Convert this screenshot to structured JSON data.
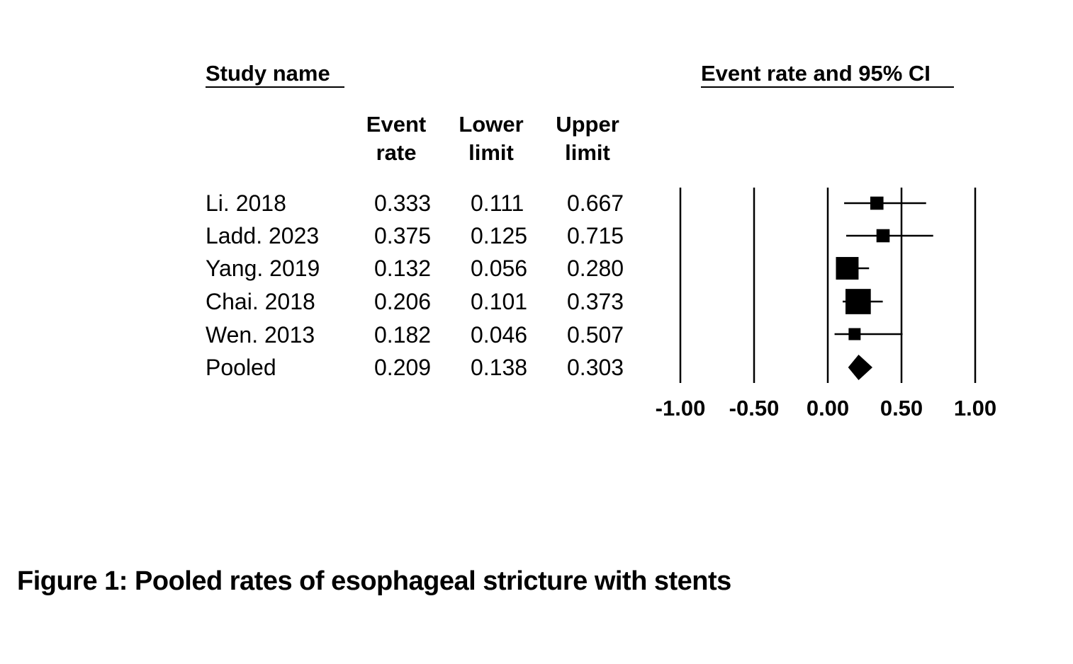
{
  "headers": {
    "study_name": "Study name",
    "plot_title": "Event rate and 95% CI",
    "event_rate": [
      "Event",
      "rate"
    ],
    "lower_limit": [
      "Lower",
      "limit"
    ],
    "upper_limit": [
      "Upper",
      "limit"
    ]
  },
  "chart_data": {
    "type": "forest",
    "title": "Event rate and 95% CI",
    "xlim": [
      -1.0,
      1.0
    ],
    "xticks": [
      -1.0,
      -0.5,
      0.0,
      0.5,
      1.0
    ],
    "xtick_labels": [
      "-1.00",
      "-0.50",
      "0.00",
      "0.50",
      "1.00"
    ],
    "grid": "vertical lines at each tick",
    "rows": [
      {
        "study": "Li. 2018",
        "event_rate": 0.333,
        "lower": 0.111,
        "upper": 0.667,
        "event_rate_text": "0.333",
        "lower_text": "0.111",
        "upper_text": "0.667",
        "weight": 0.6,
        "pooled": false
      },
      {
        "study": "Ladd. 2023",
        "event_rate": 0.375,
        "lower": 0.125,
        "upper": 0.715,
        "event_rate_text": "0.375",
        "lower_text": "0.125",
        "upper_text": "0.715",
        "weight": 0.6,
        "pooled": false
      },
      {
        "study": "Yang. 2019",
        "event_rate": 0.132,
        "lower": 0.056,
        "upper": 0.28,
        "event_rate_text": "0.132",
        "lower_text": "0.056",
        "upper_text": "0.280",
        "weight": 1.0,
        "pooled": false
      },
      {
        "study": "Chai. 2018",
        "event_rate": 0.206,
        "lower": 0.101,
        "upper": 0.373,
        "event_rate_text": "0.206",
        "lower_text": "0.101",
        "upper_text": "0.373",
        "weight": 1.25,
        "pooled": false
      },
      {
        "study": "Wen. 2013",
        "event_rate": 0.182,
        "lower": 0.046,
        "upper": 0.507,
        "event_rate_text": "0.182",
        "lower_text": "0.046",
        "upper_text": "0.507",
        "weight": 0.5,
        "pooled": false
      },
      {
        "study": "Pooled",
        "event_rate": 0.209,
        "lower": 0.138,
        "upper": 0.303,
        "event_rate_text": "0.209",
        "lower_text": "0.138",
        "upper_text": "0.303",
        "weight": 1.0,
        "pooled": true
      }
    ]
  },
  "caption": "Figure 1: Pooled rates of esophageal stricture with stents"
}
